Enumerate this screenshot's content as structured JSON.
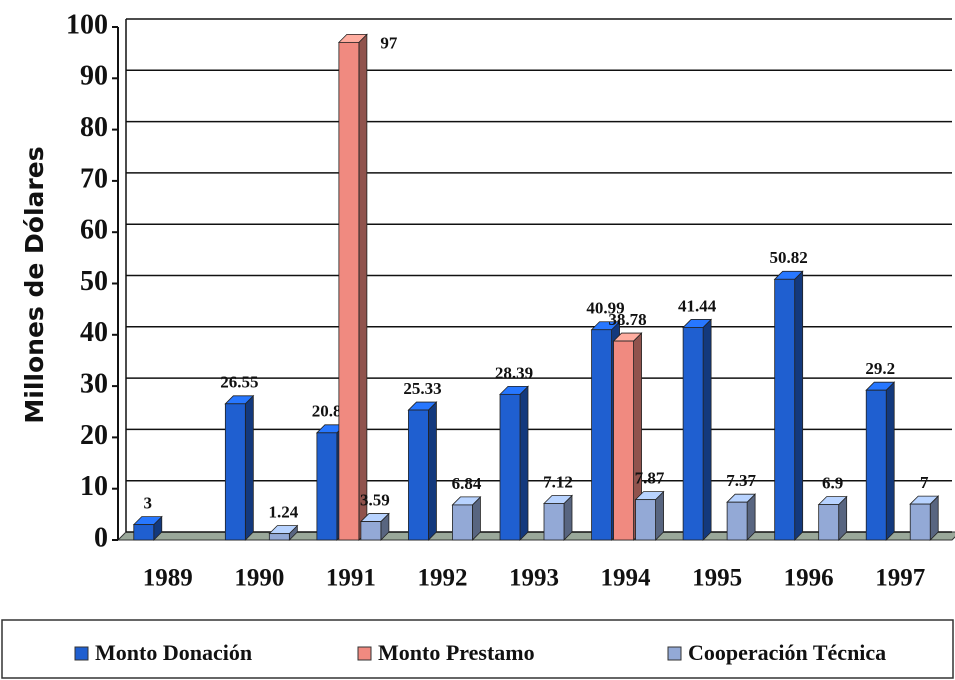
{
  "chart_data": {
    "type": "bar3d",
    "y_label": "Millones de Dólares",
    "categories": [
      "1989",
      "1990",
      "1991",
      "1992",
      "1993",
      "1994",
      "1995",
      "1996",
      "1997"
    ],
    "series": [
      {
        "name": "Monto Donación",
        "color": "#1f5fd0",
        "values": [
          3,
          26.55,
          20.89,
          25.33,
          28.39,
          40.99,
          41.44,
          50.82,
          29.2
        ]
      },
      {
        "name": "Monto Prestamo",
        "color": "#f08a80",
        "values": [
          null,
          null,
          97,
          null,
          null,
          38.78,
          null,
          null,
          null
        ]
      },
      {
        "name": "Cooperación Técnica",
        "color": "#93a9d6",
        "values": [
          null,
          1.24,
          3.59,
          6.84,
          7.12,
          7.87,
          7.37,
          6.9,
          7
        ]
      }
    ],
    "ylim": [
      0,
      100
    ],
    "yticks": [
      0,
      10,
      20,
      30,
      40,
      50,
      60,
      70,
      80,
      90,
      100
    ],
    "grid": true,
    "legend": "bottom"
  }
}
